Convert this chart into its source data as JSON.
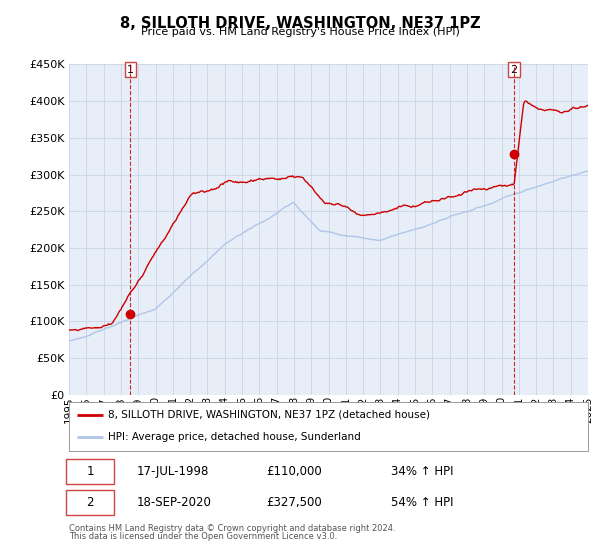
{
  "title": "8, SILLOTH DRIVE, WASHINGTON, NE37 1PZ",
  "subtitle": "Price paid vs. HM Land Registry's House Price Index (HPI)",
  "legend_line1": "8, SILLOTH DRIVE, WASHINGTON, NE37 1PZ (detached house)",
  "legend_line2": "HPI: Average price, detached house, Sunderland",
  "footnote1": "Contains HM Land Registry data © Crown copyright and database right 2024.",
  "footnote2": "This data is licensed under the Open Government Licence v3.0.",
  "sale1_date": "17-JUL-1998",
  "sale1_price": "£110,000",
  "sale1_hpi": "34% ↑ HPI",
  "sale1_year": 1998.54,
  "sale1_value": 110000,
  "sale2_date": "18-SEP-2020",
  "sale2_price": "£327,500",
  "sale2_hpi": "54% ↑ HPI",
  "sale2_year": 2020.71,
  "sale2_value": 327500,
  "hpi_color": "#aec6e8",
  "price_color": "#cc0000",
  "marker_color": "#cc0000",
  "vline_color": "#cc0000",
  "grid_color": "#c8d4e8",
  "background_color": "#e8eef8",
  "ylim": [
    0,
    450000
  ],
  "xlim_start": 1995,
  "xlim_end": 2025
}
